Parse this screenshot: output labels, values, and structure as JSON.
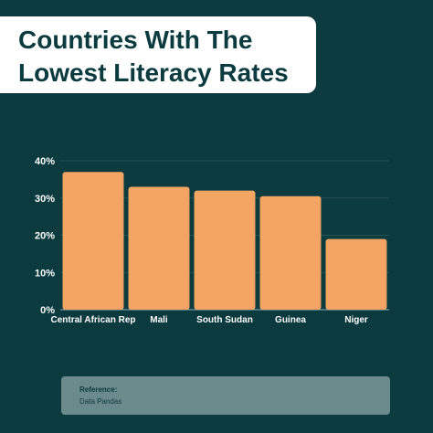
{
  "title": {
    "line1": "Countries With The",
    "line2": "Lowest Literacy Rates"
  },
  "reference": {
    "label": "Reference:",
    "source": "Data Pandas"
  },
  "colors": {
    "background": "#0b3a3f",
    "bar": "#f5a563",
    "title_card": "#ffffff",
    "title_text": "#0b3a3f",
    "reference_box": "#6b8a8b"
  },
  "chart_data": {
    "type": "bar",
    "categories": [
      "Central African Rep",
      "Mali",
      "South Sudan",
      "Guinea",
      "Niger"
    ],
    "values": [
      37,
      33,
      32,
      30.5,
      19
    ],
    "ylim": [
      0,
      40
    ],
    "yticks": [
      "0%",
      "10%",
      "20%",
      "30%",
      "40%"
    ],
    "ytick_values": [
      0,
      10,
      20,
      30,
      40
    ],
    "grid": true,
    "legend": "none"
  }
}
